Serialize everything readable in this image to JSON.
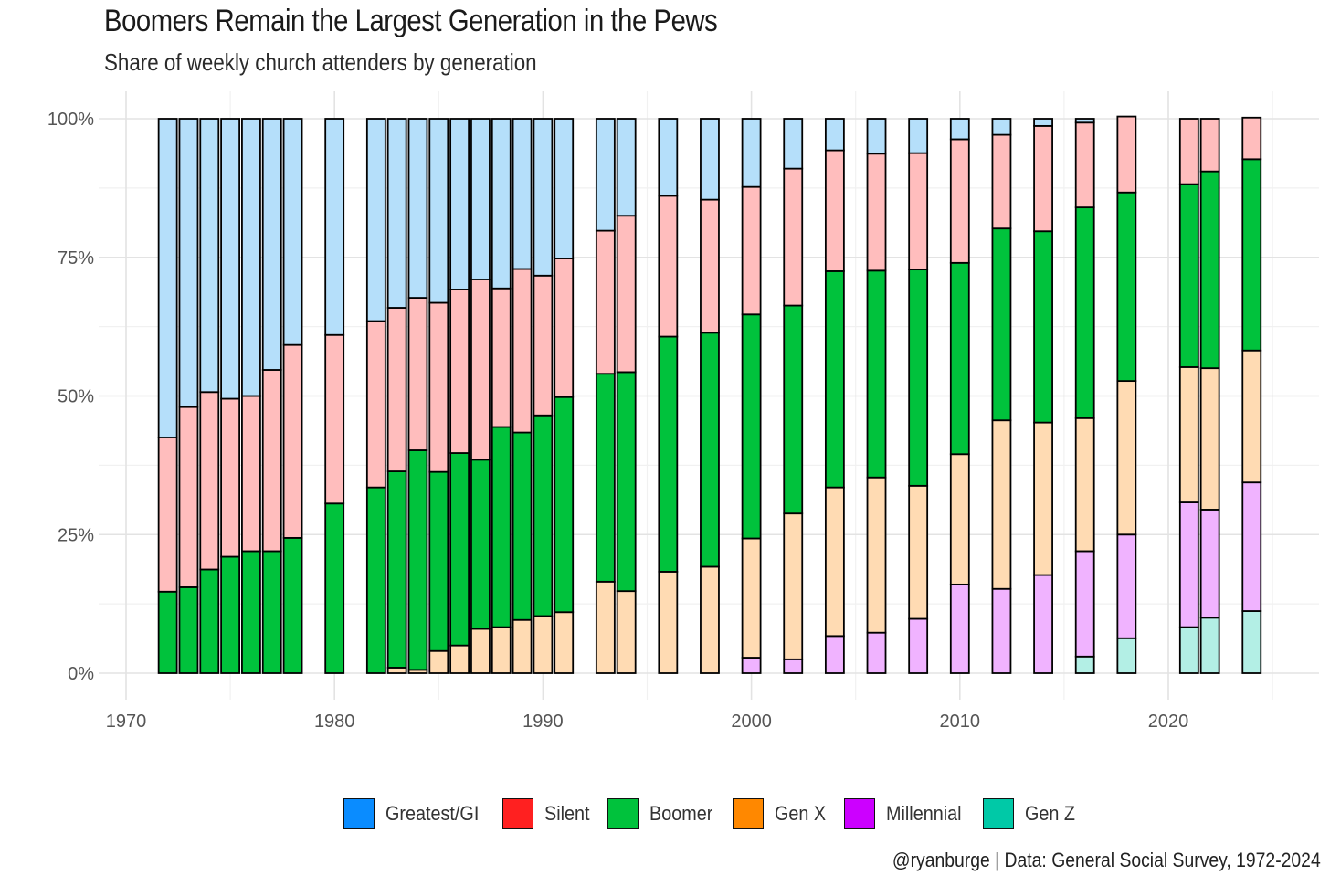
{
  "chart_data": {
    "type": "bar",
    "stacked": true,
    "title": "Boomers Remain the Largest Generation in the Pews",
    "subtitle": "Share of weekly church attenders by generation",
    "caption": "@ryanburge | Data: General Social Survey, 1972-2024",
    "xlabel": "",
    "ylabel": "",
    "xlim": [
      1970,
      2026
    ],
    "ylim": [
      0,
      1
    ],
    "x_ticks": [
      "1970",
      "1980",
      "1990",
      "2000",
      "2010",
      "2020"
    ],
    "x_tick_values": [
      1970,
      1980,
      1990,
      2000,
      2010,
      2020
    ],
    "y_ticks": [
      "0%",
      "25%",
      "50%",
      "75%",
      "100%"
    ],
    "y_tick_values": [
      0,
      0.25,
      0.5,
      0.75,
      1.0
    ],
    "grid": true,
    "legend_position": "bottom",
    "years": [
      1972,
      1973,
      1974,
      1975,
      1976,
      1977,
      1978,
      1980,
      1982,
      1983,
      1984,
      1985,
      1986,
      1987,
      1988,
      1989,
      1990,
      1991,
      1993,
      1994,
      1996,
      1998,
      2000,
      2002,
      2004,
      2006,
      2008,
      2010,
      2012,
      2014,
      2016,
      2018,
      2021,
      2022,
      2024
    ],
    "series": [
      {
        "name": "Gen Z",
        "color": "#00C9A7",
        "light_color": "#B3EFE5",
        "values": [
          0,
          0,
          0,
          0,
          0,
          0,
          0,
          0,
          0,
          0,
          0,
          0,
          0,
          0,
          0,
          0,
          0,
          0,
          0,
          0,
          0,
          0,
          0,
          0,
          0,
          0,
          0,
          0,
          0,
          0,
          0.03,
          0.063,
          0.083,
          0.1,
          0.112
        ]
      },
      {
        "name": "Millennial",
        "color": "#CC00FF",
        "light_color": "#F0B3FF",
        "values": [
          0,
          0,
          0,
          0,
          0,
          0,
          0,
          0,
          0,
          0,
          0,
          0,
          0,
          0,
          0,
          0,
          0,
          0,
          0,
          0,
          0,
          0,
          0.028,
          0.025,
          0.067,
          0.073,
          0.098,
          0.16,
          0.152,
          0.177,
          0.19,
          0.187,
          0.225,
          0.195,
          0.232
        ]
      },
      {
        "name": "Gen X",
        "color": "#FF8800",
        "light_color": "#FFDBB3",
        "values": [
          0,
          0,
          0,
          0,
          0,
          0,
          0,
          0,
          0,
          0.01,
          0.006,
          0.04,
          0.05,
          0.08,
          0.083,
          0.096,
          0.103,
          0.11,
          0.165,
          0.148,
          0.183,
          0.192,
          0.215,
          0.263,
          0.268,
          0.28,
          0.24,
          0.235,
          0.304,
          0.275,
          0.24,
          0.277,
          0.244,
          0.255,
          0.238
        ]
      },
      {
        "name": "Boomer",
        "color": "#00C23C",
        "light_color": "#00C23C",
        "values": [
          0.147,
          0.155,
          0.187,
          0.21,
          0.22,
          0.22,
          0.244,
          0.306,
          0.335,
          0.354,
          0.396,
          0.323,
          0.347,
          0.305,
          0.361,
          0.338,
          0.362,
          0.388,
          0.375,
          0.395,
          0.424,
          0.422,
          0.404,
          0.375,
          0.39,
          0.373,
          0.39,
          0.345,
          0.346,
          0.345,
          0.38,
          0.34,
          0.33,
          0.355,
          0.345
        ]
      },
      {
        "name": "Silent",
        "color": "#FF2020",
        "light_color": "#FFBDBD",
        "values": [
          0.278,
          0.325,
          0.32,
          0.285,
          0.28,
          0.327,
          0.348,
          0.304,
          0.3,
          0.295,
          0.275,
          0.305,
          0.295,
          0.325,
          0.25,
          0.295,
          0.252,
          0.25,
          0.258,
          0.282,
          0.254,
          0.24,
          0.23,
          0.247,
          0.218,
          0.211,
          0.21,
          0.223,
          0.169,
          0.19,
          0.153,
          0.137,
          0.118,
          0.095,
          0.075
        ]
      },
      {
        "name": "Greatest/GI",
        "color": "#0A8CFF",
        "light_color": "#B5DFFA",
        "values": [
          0.575,
          0.52,
          0.493,
          0.505,
          0.5,
          0.453,
          0.408,
          0.39,
          0.365,
          0.341,
          0.323,
          0.332,
          0.308,
          0.29,
          0.306,
          0.271,
          0.283,
          0.252,
          0.202,
          0.175,
          0.139,
          0.146,
          0.123,
          0.09,
          0.057,
          0.063,
          0.062,
          0.037,
          0.029,
          0.013,
          0.007,
          0,
          0,
          0,
          0
        ]
      }
    ]
  }
}
